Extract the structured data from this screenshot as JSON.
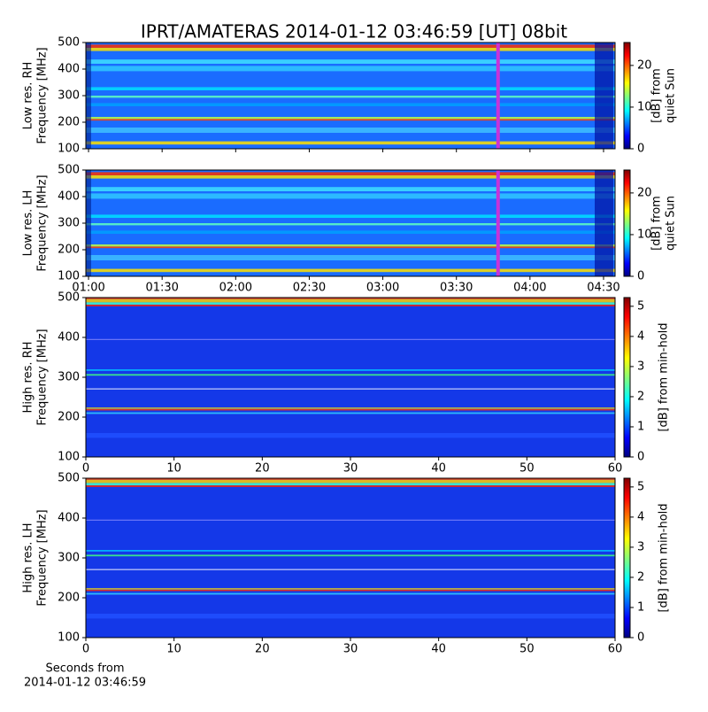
{
  "chart_data": [
    {
      "type": "heatmap",
      "title": "IPRT/AMATERAS 2014-01-12 03:46:59 [UT]   08bit",
      "ylabel": [
        "Low res. RH",
        "Frequency [MHz]"
      ],
      "ylim": [
        100,
        500
      ],
      "yticks": [
        100,
        200,
        300,
        400,
        500
      ],
      "xlim": [
        58.9,
        274.7
      ],
      "xticks": [
        60,
        90,
        120,
        150,
        180,
        210,
        240,
        270
      ],
      "marker_x": 226.98,
      "marker_color": "#c832d8",
      "colorbar": {
        "label": [
          "[dB] from",
          "quiet Sun"
        ],
        "lim": [
          0,
          25.5
        ],
        "ticks": [
          0,
          10,
          20
        ],
        "colormap": "jet"
      }
    },
    {
      "type": "heatmap",
      "ylabel": [
        "Low res. LH",
        "Frequency [MHz]"
      ],
      "ylim": [
        100,
        500
      ],
      "yticks": [
        100,
        200,
        300,
        400,
        500
      ],
      "xlim": [
        58.9,
        274.7
      ],
      "xticks": [
        {
          "value": 60,
          "label": "01:00"
        },
        {
          "value": 90,
          "label": "01:30"
        },
        {
          "value": 120,
          "label": "02:00"
        },
        {
          "value": 150,
          "label": "02:30"
        },
        {
          "value": 180,
          "label": "03:00"
        },
        {
          "value": 210,
          "label": "03:30"
        },
        {
          "value": 240,
          "label": "04:00"
        },
        {
          "value": 270,
          "label": "04:30"
        }
      ],
      "marker_x": 226.98,
      "marker_color": "#c832d8",
      "colorbar": {
        "label": [
          "[dB] from",
          "quiet Sun"
        ],
        "lim": [
          0,
          25.5
        ],
        "ticks": [
          0,
          10,
          20
        ],
        "colormap": "jet"
      }
    },
    {
      "type": "heatmap",
      "ylabel": [
        "High res. RH",
        "Frequency [MHz]"
      ],
      "ylim": [
        100,
        500
      ],
      "yticks": [
        100,
        200,
        300,
        400,
        500
      ],
      "xlim": [
        0,
        60
      ],
      "xticks": [
        0,
        10,
        20,
        30,
        40,
        50,
        60
      ],
      "colorbar": {
        "label": [
          "[dB] from min-hold"
        ],
        "lim": [
          0,
          5.29
        ],
        "ticks": [
          0,
          1,
          2,
          3,
          4,
          5
        ],
        "colormap": "jet"
      }
    },
    {
      "type": "heatmap",
      "ylabel": [
        "High res. LH",
        "Frequency [MHz]"
      ],
      "ylim": [
        100,
        500
      ],
      "yticks": [
        100,
        200,
        300,
        400,
        500
      ],
      "xlim": [
        0,
        60
      ],
      "xticks": [
        0,
        10,
        20,
        30,
        40,
        50,
        60
      ],
      "xlabel": [
        "Seconds from",
        "2014-01-12 03:46:59"
      ],
      "colorbar": {
        "label": [
          "[dB] from min-hold"
        ],
        "lim": [
          0,
          5.29
        ],
        "ticks": [
          0,
          1,
          2,
          3,
          4,
          5
        ],
        "colormap": "jet"
      }
    }
  ]
}
